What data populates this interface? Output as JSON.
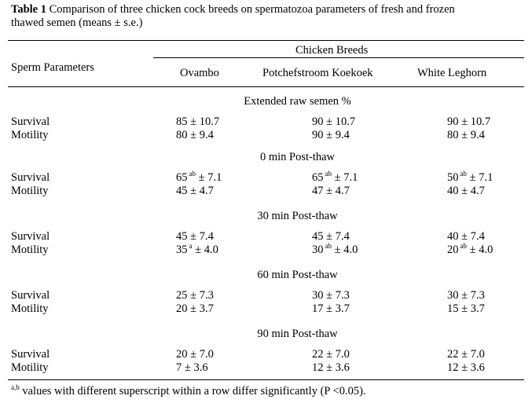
{
  "caption": {
    "label": "Table 1",
    "text": "Comparison of three chicken cock breeds on spermatozoa parameters of fresh and frozen",
    "text2": "thawed semen (means ± s.e.)"
  },
  "header": {
    "param": "Sperm Parameters",
    "group": "Chicken Breeds",
    "breeds": [
      "Ovambo",
      "Potchefstroom Koekoek",
      "White Leghorn"
    ]
  },
  "sections": [
    {
      "title": "Extended raw semen %",
      "rows": [
        {
          "label": "Survival",
          "cells": [
            {
              "v": "85",
              "s": "",
              "e": "± 10.7"
            },
            {
              "v": "90",
              "s": "",
              "e": "± 10.7"
            },
            {
              "v": "90",
              "s": "",
              "e": "± 10.7"
            }
          ]
        },
        {
          "label": "Motility",
          "cells": [
            {
              "v": "80",
              "s": "",
              "e": "± 9.4"
            },
            {
              "v": "90",
              "s": "",
              "e": "± 9.4"
            },
            {
              "v": "80",
              "s": "",
              "e": "± 9.4"
            }
          ]
        }
      ]
    },
    {
      "title": "0 min Post-thaw",
      "rows": [
        {
          "label": "Survival",
          "cells": [
            {
              "v": "65",
              "s": "ab",
              "e": "± 7.1"
            },
            {
              "v": "65",
              "s": "ab",
              "e": "± 7.1"
            },
            {
              "v": "50",
              "s": "ab",
              "e": "± 7.1"
            }
          ]
        },
        {
          "label": "Motility",
          "cells": [
            {
              "v": "45",
              "s": "",
              "e": "± 4.7"
            },
            {
              "v": "47",
              "s": "",
              "e": "± 4.7"
            },
            {
              "v": "40",
              "s": "",
              "e": "± 4.7"
            }
          ]
        }
      ]
    },
    {
      "title": "30 min Post-thaw",
      "rows": [
        {
          "label": "Survival",
          "cells": [
            {
              "v": "45",
              "s": "",
              "e": "± 7.4"
            },
            {
              "v": "45",
              "s": "",
              "e": "± 7.4"
            },
            {
              "v": "40",
              "s": "",
              "e": "± 7.4"
            }
          ]
        },
        {
          "label": "Motility",
          "cells": [
            {
              "v": "35",
              "s": "a",
              "e": "± 4.0"
            },
            {
              "v": "30",
              "s": "ab",
              "e": "± 4.0"
            },
            {
              "v": "20",
              "s": "ab",
              "e": "± 4.0"
            }
          ]
        }
      ]
    },
    {
      "title": "60 min Post-thaw",
      "rows": [
        {
          "label": "Survival",
          "cells": [
            {
              "v": "25",
              "s": "",
              "e": "± 7.3"
            },
            {
              "v": "30",
              "s": "",
              "e": "± 7.3"
            },
            {
              "v": "30",
              "s": "",
              "e": "± 7.3"
            }
          ]
        },
        {
          "label": "Motility",
          "cells": [
            {
              "v": "20",
              "s": "",
              "e": "± 3.7"
            },
            {
              "v": "17",
              "s": "",
              "e": "± 3.7"
            },
            {
              "v": "15",
              "s": "",
              "e": "± 3.7"
            }
          ]
        }
      ]
    },
    {
      "title": "90 min Post-thaw",
      "rows": [
        {
          "label": "Survival",
          "cells": [
            {
              "v": "20",
              "s": "",
              "e": "± 7.0"
            },
            {
              "v": "22",
              "s": "",
              "e": "± 7.0"
            },
            {
              "v": "22",
              "s": "",
              "e": "± 7.0"
            }
          ]
        },
        {
          "label": "Motility",
          "cells": [
            {
              "v": "7",
              "s": "",
              "e": "± 3.6"
            },
            {
              "v": "12",
              "s": "",
              "e": "± 3.6"
            },
            {
              "v": "12",
              "s": "",
              "e": "± 3.6"
            }
          ]
        }
      ]
    }
  ],
  "footnote": {
    "sup": "a,b",
    "text": "values with different superscript within a row differ significantly (P <0.05)."
  }
}
